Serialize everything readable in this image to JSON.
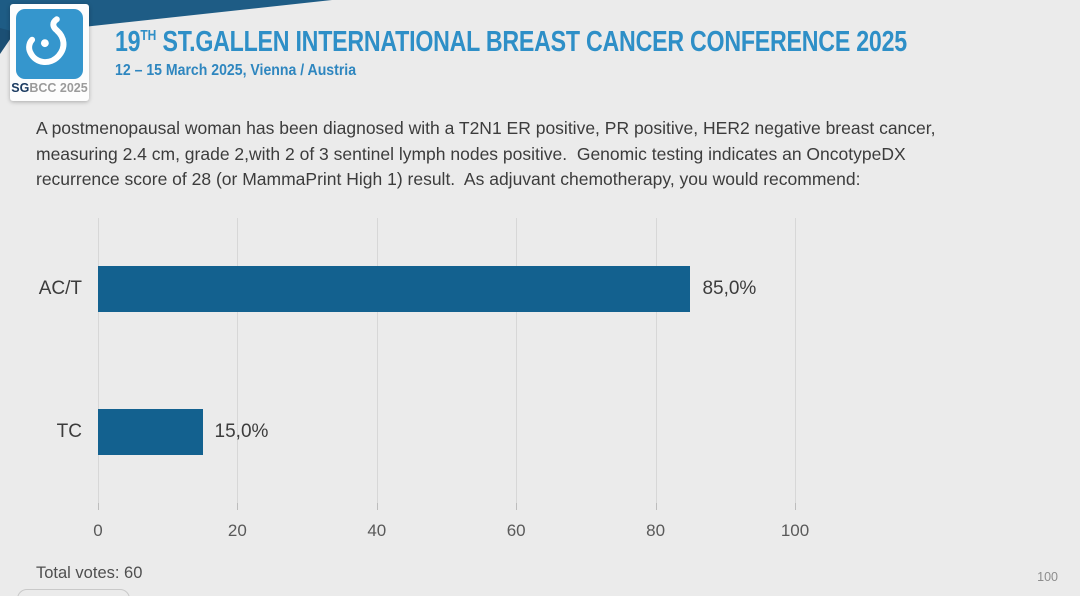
{
  "header": {
    "logo": {
      "sg": "SG",
      "rest": "BCC 2025"
    },
    "title": {
      "prefix": "19",
      "superscript": "TH",
      "rest": " ST.GALLEN INTERNATIONAL BREAST CANCER CONFERENCE 2025"
    },
    "subtitle": "12 – 15 March 2025, Vienna / Austria"
  },
  "question": "A postmenopausal woman has been diagnosed with a T2N1 ER positive, PR positive, HER2 negative breast cancer, measuring 2.4 cm, grade 2,with 2 of 3 sentinel lymph nodes positive.  Genomic testing indicates an OncotypeDX recurrence score of 28 (or MammaPrint High 1) result.  As adjuvant chemotherapy, you would recommend:",
  "chart_data": {
    "type": "bar",
    "orientation": "horizontal",
    "title": "",
    "xlabel": "",
    "ylabel": "",
    "categories": [
      "AC/T",
      "TC"
    ],
    "values": [
      85.0,
      15.0
    ],
    "value_labels": [
      "85,0%",
      "15,0%"
    ],
    "xticks": [
      0,
      20,
      40,
      60,
      80,
      100
    ],
    "xlim": [
      0,
      100
    ],
    "grid": true,
    "legend": false,
    "bar_color": "#13618f"
  },
  "footer": {
    "total_votes": "Total votes: 60",
    "page_number": "100"
  },
  "colors": {
    "accent_title_blue": "#2e8fc7",
    "band_teal": "#1e5c85",
    "logo_blue": "#3596cd",
    "bar_blue": "#13618f",
    "background": "#ebebeb"
  }
}
